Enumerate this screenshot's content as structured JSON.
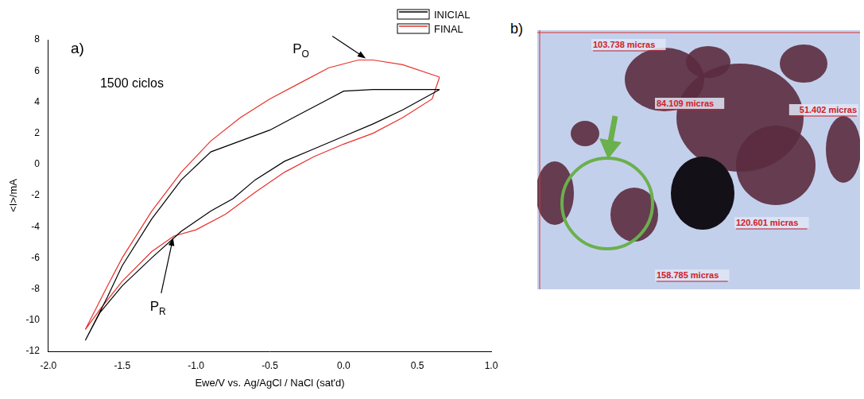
{
  "chart_data": {
    "type": "line",
    "panel_label": "a)",
    "x_label": "Ewe/V vs. Ag/AgCl / NaCl (sat'd)",
    "y_label": "<I>/mA",
    "xlim": [
      -2,
      1
    ],
    "ylim": [
      -12,
      8
    ],
    "xticks": [
      {
        "value": -2,
        "label": "-2.0"
      },
      {
        "value": -1.5,
        "label": "-1.5"
      },
      {
        "value": -1,
        "label": "-1.0"
      },
      {
        "value": -0.5,
        "label": "-0.5"
      },
      {
        "value": 0,
        "label": "0.0"
      },
      {
        "value": 0.5,
        "label": "0.5"
      },
      {
        "value": 1,
        "label": "1.0"
      }
    ],
    "yticks": [
      -12,
      -10,
      -8,
      -6,
      -4,
      -2,
      0,
      2,
      4,
      6,
      8
    ],
    "grid": false,
    "legend": "upper right",
    "annotations": [
      {
        "text": "1500 ciclos"
      },
      {
        "text": "P",
        "subscript": "O",
        "x": 0.15,
        "y": 6.7
      },
      {
        "text": "P",
        "subscript": "R",
        "x": -1.15,
        "y": -4.6
      }
    ],
    "series": [
      {
        "name": "INICIAL",
        "color": "#000000",
        "x": [
          0.65,
          0.4,
          0.2,
          0.0,
          -0.1,
          -0.3,
          -0.5,
          -0.7,
          -0.9,
          -1.1,
          -1.3,
          -1.5,
          -1.6,
          -1.75,
          -1.65,
          -1.5,
          -1.3,
          -1.1,
          -0.9,
          -0.75,
          -0.6,
          -0.4,
          -0.2,
          0.0,
          0.2,
          0.4,
          0.65
        ],
        "values": [
          4.8,
          4.8,
          4.8,
          4.7,
          4.2,
          3.2,
          2.2,
          1.5,
          0.8,
          -1.0,
          -3.5,
          -6.5,
          -8.5,
          -11.3,
          -9.5,
          -7.8,
          -6.0,
          -4.3,
          -3.0,
          -2.2,
          -1.0,
          0.2,
          1.0,
          1.8,
          2.6,
          3.5,
          4.8
        ]
      },
      {
        "name": "FINAL",
        "color": "#e8302a",
        "x": [
          0.65,
          0.4,
          0.2,
          0.1,
          -0.1,
          -0.3,
          -0.5,
          -0.7,
          -0.9,
          -1.1,
          -1.3,
          -1.5,
          -1.6,
          -1.75,
          -1.65,
          -1.5,
          -1.3,
          -1.15,
          -1.0,
          -0.8,
          -0.6,
          -0.4,
          -0.2,
          0.0,
          0.2,
          0.4,
          0.6,
          0.65
        ],
        "values": [
          5.6,
          6.4,
          6.7,
          6.7,
          6.2,
          5.2,
          4.2,
          3.0,
          1.5,
          -0.5,
          -3.0,
          -6.0,
          -7.8,
          -10.6,
          -9.3,
          -7.5,
          -5.6,
          -4.6,
          -4.2,
          -3.2,
          -1.8,
          -0.5,
          0.5,
          1.3,
          2.0,
          3.0,
          4.2,
          5.6
        ]
      }
    ]
  },
  "image": {
    "label": "b)",
    "measurements": [
      "103.738 micras",
      "84.109 micras",
      "51.402 micras",
      "120.601 micras",
      "158.785 micras"
    ]
  }
}
